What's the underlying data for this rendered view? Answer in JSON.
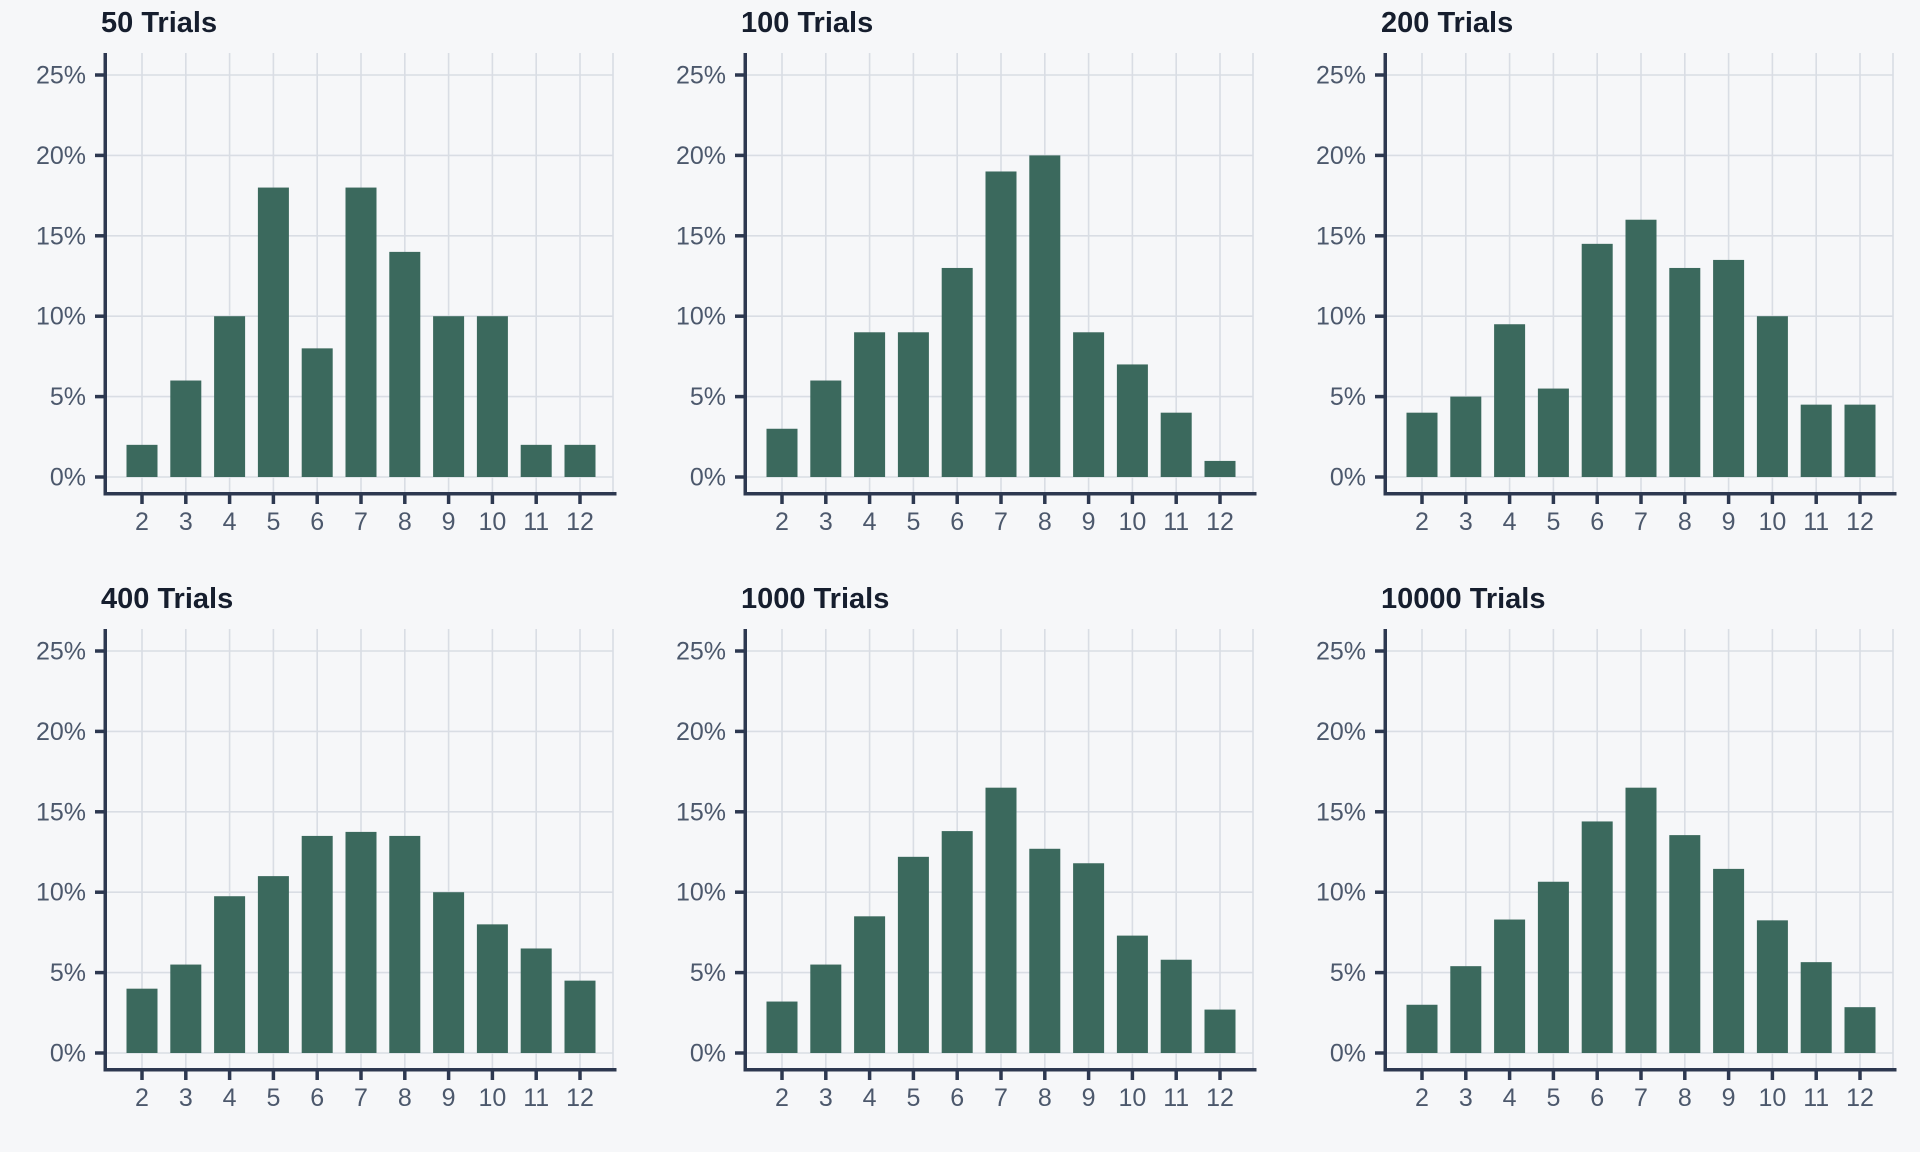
{
  "style": {
    "background": "#f6f7f9",
    "bar_color": "#3b695d",
    "grid_color": "#d9dde4",
    "axis_color": "#2d3850",
    "tick_label_color": "#4c586c",
    "title_color": "#161e2e"
  },
  "axis": {
    "y_tick_labels": [
      "0%",
      "5%",
      "10%",
      "15%",
      "20%",
      "25%"
    ],
    "y_tick_values": [
      0,
      5,
      10,
      15,
      20,
      25
    ]
  },
  "chart_data": [
    {
      "type": "bar",
      "title": "50 Trials",
      "categories": [
        "2",
        "3",
        "4",
        "5",
        "6",
        "7",
        "8",
        "9",
        "10",
        "11",
        "12"
      ],
      "values": [
        2,
        6,
        10,
        18,
        8,
        18,
        14,
        10,
        10,
        2,
        2
      ],
      "xlabel": "",
      "ylabel": "",
      "ylim": [
        0,
        26.5
      ],
      "grid": "on",
      "legend": "none"
    },
    {
      "type": "bar",
      "title": "100 Trials",
      "categories": [
        "2",
        "3",
        "4",
        "5",
        "6",
        "7",
        "8",
        "9",
        "10",
        "11",
        "12"
      ],
      "values": [
        3,
        6,
        9,
        9,
        13,
        19,
        20,
        9,
        7,
        4,
        1
      ],
      "xlabel": "",
      "ylabel": "",
      "ylim": [
        0,
        26.5
      ],
      "grid": "on",
      "legend": "none"
    },
    {
      "type": "bar",
      "title": "200 Trials",
      "categories": [
        "2",
        "3",
        "4",
        "5",
        "6",
        "7",
        "8",
        "9",
        "10",
        "11",
        "12"
      ],
      "values": [
        4,
        5,
        9.5,
        5.5,
        14.5,
        16,
        13,
        13.5,
        10,
        4.5,
        4.5
      ],
      "xlabel": "",
      "ylabel": "",
      "ylim": [
        0,
        26.5
      ],
      "grid": "on",
      "legend": "none"
    },
    {
      "type": "bar",
      "title": "400 Trials",
      "categories": [
        "2",
        "3",
        "4",
        "5",
        "6",
        "7",
        "8",
        "9",
        "10",
        "11",
        "12"
      ],
      "values": [
        4,
        5.5,
        9.75,
        11,
        13.5,
        13.75,
        13.5,
        10,
        8,
        6.5,
        4.5
      ],
      "xlabel": "",
      "ylabel": "",
      "ylim": [
        0,
        26.5
      ],
      "grid": "on",
      "legend": "none"
    },
    {
      "type": "bar",
      "title": "1000 Trials",
      "categories": [
        "2",
        "3",
        "4",
        "5",
        "6",
        "7",
        "8",
        "9",
        "10",
        "11",
        "12"
      ],
      "values": [
        3.2,
        5.5,
        8.5,
        12.2,
        13.8,
        16.5,
        12.7,
        11.8,
        7.3,
        5.8,
        2.7
      ],
      "xlabel": "",
      "ylabel": "",
      "ylim": [
        0,
        26.5
      ],
      "grid": "on",
      "legend": "none"
    },
    {
      "type": "bar",
      "title": "10000 Trials",
      "categories": [
        "2",
        "3",
        "4",
        "5",
        "6",
        "7",
        "8",
        "9",
        "10",
        "11",
        "12"
      ],
      "values": [
        3.0,
        5.4,
        8.3,
        10.65,
        14.4,
        16.5,
        13.55,
        11.45,
        8.25,
        5.65,
        2.85
      ],
      "xlabel": "",
      "ylabel": "",
      "ylim": [
        0,
        26.5
      ],
      "grid": "on",
      "legend": "none"
    }
  ]
}
